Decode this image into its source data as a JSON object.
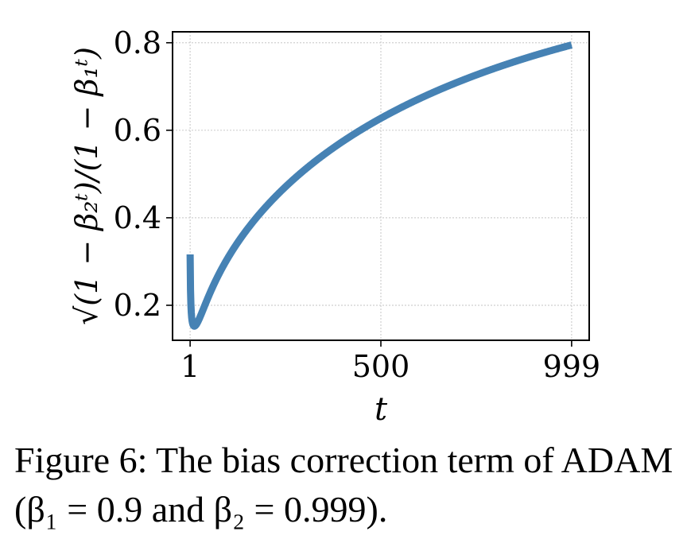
{
  "chart_data": {
    "type": "line",
    "title": "",
    "xlabel": "t",
    "ylabel": "√(1 − β₂ᵗ)/(1 − β₁ᵗ)",
    "xlim": [
      -45,
      1045
    ],
    "ylim": [
      0.12,
      0.825
    ],
    "x_ticks": [
      1,
      500,
      999
    ],
    "x_tick_labels": [
      "1",
      "500",
      "999"
    ],
    "y_ticks": [
      0.2,
      0.4,
      0.6,
      0.8
    ],
    "y_tick_labels": [
      "0.2",
      "0.4",
      "0.6",
      "0.8"
    ],
    "grid": true,
    "line_color": "#4682b4",
    "series": [
      {
        "beta1": 0.9,
        "beta2": 0.999,
        "t_start": 1,
        "t_end": 999
      }
    ]
  },
  "caption": "Figure 6: The bias correction term of ADAM (β₁ = 0.9 and β₂ = 0.999)."
}
